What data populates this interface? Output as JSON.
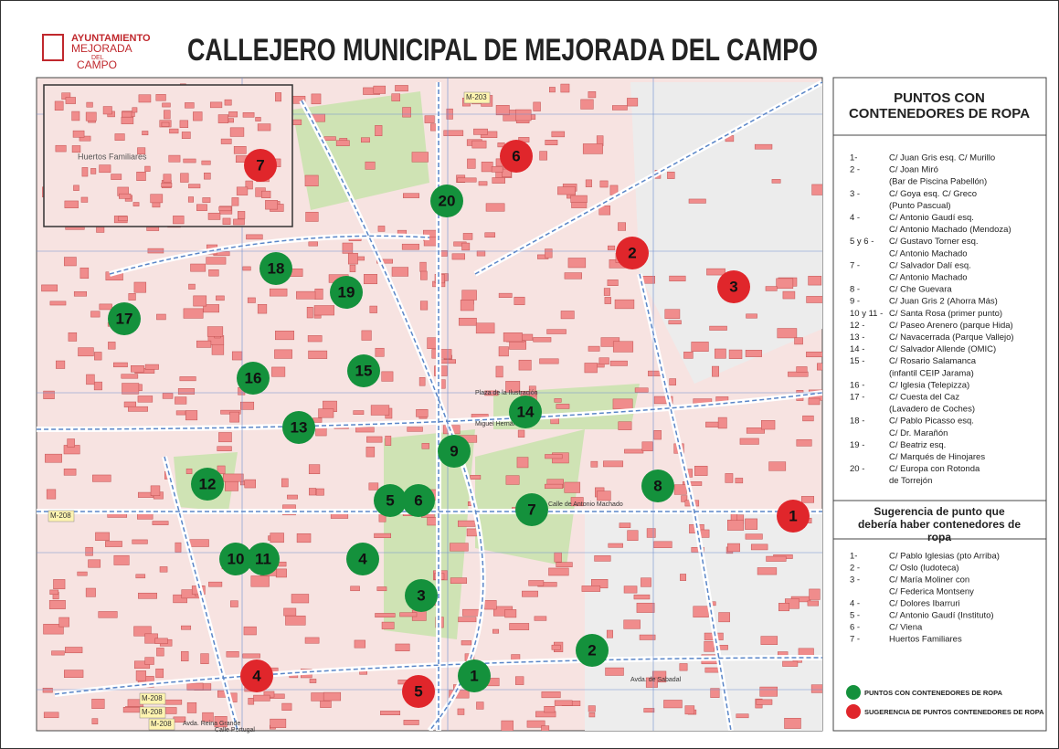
{
  "header": {
    "logo": [
      "AYUNTAMIENTO",
      "MEJORADA",
      "DEL",
      "CAMPO"
    ],
    "title": "CALLEJERO MUNICIPAL DE MEJORADA DEL CAMPO"
  },
  "map": {
    "inset_label": "Huertos Familiares",
    "green_markers": [
      "1",
      "2",
      "3",
      "4",
      "5",
      "6",
      "7",
      "8",
      "9",
      "10",
      "11",
      "12",
      "13",
      "14",
      "15",
      "16",
      "17",
      "18",
      "19",
      "20"
    ],
    "red_markers": [
      "1",
      "2",
      "3",
      "4",
      "5",
      "6",
      "7"
    ],
    "road_labels": [
      "M-203",
      "M-208",
      "M-208",
      "M-208",
      "M-208"
    ],
    "street_labels": [
      "Calle de Antonio Machado",
      "Miguel Hernández",
      "Avda. Reina Grande",
      "Calle Portugal",
      "Avda. de Sabadal",
      "Plaza de la Ilustración"
    ]
  },
  "legend": {
    "title": "PUNTOS CON CONTENEDORES DE ROPA",
    "items": [
      {
        "num": "1-",
        "lines": [
          "C/ Juan Gris esq. C/ Murillo"
        ]
      },
      {
        "num": "2 -",
        "lines": [
          "C/ Joan Miró",
          "(Bar de Piscina Pabellón)"
        ]
      },
      {
        "num": "3 -",
        "lines": [
          "C/ Goya esq. C/ Greco",
          "(Punto Pascual)"
        ]
      },
      {
        "num": "4 -",
        "lines": [
          "C/ Antonio Gaudí esq.",
          "C/ Antonio Machado (Mendoza)"
        ]
      },
      {
        "num": "5 y 6 -",
        "lines": [
          "C/ Gustavo Torner esq.",
          "C/ Antonio Machado"
        ]
      },
      {
        "num": "7 -",
        "lines": [
          "C/ Salvador Dalí esq.",
          "C/ Antonio Machado"
        ]
      },
      {
        "num": "8 -",
        "lines": [
          "C/ Che Guevara"
        ]
      },
      {
        "num": "9 -",
        "lines": [
          "C/ Juan Gris 2 (Ahorra Más)"
        ]
      },
      {
        "num": "10 y 11 -",
        "lines": [
          "C/ Santa Rosa (primer punto)"
        ]
      },
      {
        "num": "12 -",
        "lines": [
          "C/ Paseo Arenero (parque Hida)"
        ]
      },
      {
        "num": "13 -",
        "lines": [
          "C/ Navacerrada (Parque Vallejo)"
        ]
      },
      {
        "num": "14 -",
        "lines": [
          "C/ Salvador Allende (OMIC)"
        ]
      },
      {
        "num": "15 -",
        "lines": [
          "C/ Rosario Salamanca",
          "(infantil CEIP Jarama)"
        ]
      },
      {
        "num": "16 -",
        "lines": [
          "C/ Iglesia (Telepizza)"
        ]
      },
      {
        "num": "17 -",
        "lines": [
          "C/ Cuesta del Caz",
          "(Lavadero de Coches)"
        ]
      },
      {
        "num": "18 -",
        "lines": [
          "C/ Pablo Picasso esq.",
          "C/ Dr. Marañón"
        ]
      },
      {
        "num": "19 -",
        "lines": [
          "C/ Beatriz esq.",
          "C/ Marqués de Hinojares"
        ]
      },
      {
        "num": "20 -",
        "lines": [
          "C/ Europa con Rotonda",
          "de Torrejón"
        ]
      }
    ]
  },
  "suggestions": {
    "title": "Sugerencia de punto que debería haber contenedores de ropa",
    "items": [
      {
        "num": "1-",
        "lines": [
          "C/ Pablo Iglesias (pto Arriba)"
        ]
      },
      {
        "num": "2 -",
        "lines": [
          "C/ Oslo (ludoteca)"
        ]
      },
      {
        "num": "3 -",
        "lines": [
          "C/ María Moliner con",
          "C/ Federica Montseny"
        ]
      },
      {
        "num": "4 -",
        "lines": [
          "C/ Dolores Ibarruri"
        ]
      },
      {
        "num": "5 -",
        "lines": [
          "C/ Antonio Gaudí (Instituto)"
        ]
      },
      {
        "num": "6 -",
        "lines": [
          "C/ Viena"
        ]
      },
      {
        "num": "7 -",
        "lines": [
          "Huertos Familiares"
        ]
      }
    ]
  },
  "key": {
    "green": "PUNTOS CON CONTENEDORES DE ROPA",
    "red": "SUGERENCIA DE PUNTOS CONTENEDORES DE ROPA"
  }
}
